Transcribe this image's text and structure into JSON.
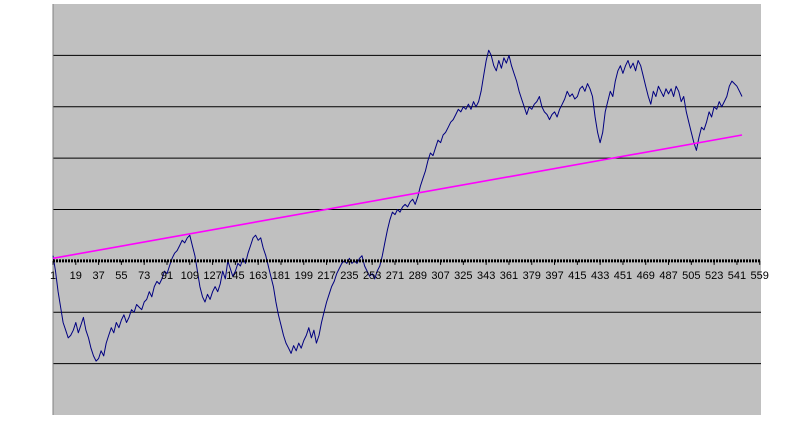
{
  "chart_data": {
    "type": "line",
    "title": "",
    "xlabel": "",
    "ylabel": "",
    "x_tick_labels": [
      "1",
      "19",
      "37",
      "55",
      "73",
      "91",
      "109",
      "127",
      "145",
      "163",
      "181",
      "199",
      "217",
      "235",
      "253",
      "271",
      "289",
      "307",
      "325",
      "343",
      "361",
      "379",
      "397",
      "415",
      "433",
      "451",
      "469",
      "487",
      "505",
      "523",
      "541",
      "559"
    ],
    "xlim": [
      1,
      560
    ],
    "ylim": [
      -3,
      5
    ],
    "grid": true,
    "legend": "none",
    "colors": {
      "plot_background": "#c0c0c0",
      "series_line": "#000080",
      "trend_line": "#ff00ff",
      "gridline": "#000000",
      "zero_axis": "#000000"
    },
    "series": [
      {
        "values_xy": [
          [
            1,
            0.1
          ],
          [
            3,
            -0.2
          ],
          [
            5,
            -0.6
          ],
          [
            7,
            -0.9
          ],
          [
            9,
            -1.2
          ],
          [
            11,
            -1.35
          ],
          [
            13,
            -1.5
          ],
          [
            15,
            -1.45
          ],
          [
            17,
            -1.35
          ],
          [
            19,
            -1.2
          ],
          [
            21,
            -1.4
          ],
          [
            23,
            -1.25
          ],
          [
            25,
            -1.1
          ],
          [
            27,
            -1.35
          ],
          [
            29,
            -1.5
          ],
          [
            31,
            -1.7
          ],
          [
            33,
            -1.85
          ],
          [
            35,
            -1.95
          ],
          [
            37,
            -1.9
          ],
          [
            39,
            -1.75
          ],
          [
            41,
            -1.85
          ],
          [
            43,
            -1.6
          ],
          [
            45,
            -1.45
          ],
          [
            47,
            -1.3
          ],
          [
            49,
            -1.4
          ],
          [
            51,
            -1.2
          ],
          [
            53,
            -1.3
          ],
          [
            55,
            -1.15
          ],
          [
            57,
            -1.05
          ],
          [
            59,
            -1.2
          ],
          [
            61,
            -1.1
          ],
          [
            63,
            -0.95
          ],
          [
            65,
            -1.0
          ],
          [
            67,
            -0.85
          ],
          [
            69,
            -0.9
          ],
          [
            71,
            -0.95
          ],
          [
            73,
            -0.8
          ],
          [
            75,
            -0.75
          ],
          [
            77,
            -0.6
          ],
          [
            79,
            -0.7
          ],
          [
            81,
            -0.5
          ],
          [
            83,
            -0.4
          ],
          [
            85,
            -0.45
          ],
          [
            87,
            -0.35
          ],
          [
            89,
            -0.2
          ],
          [
            91,
            -0.25
          ],
          [
            93,
            -0.1
          ],
          [
            95,
            0.05
          ],
          [
            97,
            0.15
          ],
          [
            99,
            0.2
          ],
          [
            101,
            0.3
          ],
          [
            103,
            0.4
          ],
          [
            105,
            0.35
          ],
          [
            107,
            0.45
          ],
          [
            109,
            0.5
          ],
          [
            111,
            0.3
          ],
          [
            113,
            0.1
          ],
          [
            115,
            -0.2
          ],
          [
            117,
            -0.5
          ],
          [
            119,
            -0.7
          ],
          [
            121,
            -0.8
          ],
          [
            123,
            -0.65
          ],
          [
            125,
            -0.75
          ],
          [
            127,
            -0.6
          ],
          [
            129,
            -0.5
          ],
          [
            131,
            -0.6
          ],
          [
            133,
            -0.45
          ],
          [
            135,
            -0.2
          ],
          [
            137,
            -0.35
          ],
          [
            139,
            0.0
          ],
          [
            141,
            -0.15
          ],
          [
            143,
            -0.3
          ],
          [
            145,
            -0.2
          ],
          [
            147,
            -0.05
          ],
          [
            149,
            -0.1
          ],
          [
            151,
            0.05
          ],
          [
            153,
            -0.05
          ],
          [
            155,
            0.15
          ],
          [
            157,
            0.3
          ],
          [
            159,
            0.45
          ],
          [
            161,
            0.5
          ],
          [
            163,
            0.4
          ],
          [
            165,
            0.45
          ],
          [
            167,
            0.25
          ],
          [
            169,
            0.1
          ],
          [
            171,
            -0.1
          ],
          [
            173,
            -0.3
          ],
          [
            175,
            -0.5
          ],
          [
            177,
            -0.8
          ],
          [
            179,
            -1.05
          ],
          [
            181,
            -1.25
          ],
          [
            183,
            -1.45
          ],
          [
            185,
            -1.6
          ],
          [
            187,
            -1.7
          ],
          [
            189,
            -1.8
          ],
          [
            191,
            -1.65
          ],
          [
            193,
            -1.75
          ],
          [
            195,
            -1.6
          ],
          [
            197,
            -1.7
          ],
          [
            199,
            -1.55
          ],
          [
            201,
            -1.45
          ],
          [
            203,
            -1.3
          ],
          [
            205,
            -1.5
          ],
          [
            207,
            -1.35
          ],
          [
            209,
            -1.6
          ],
          [
            211,
            -1.45
          ],
          [
            213,
            -1.2
          ],
          [
            215,
            -1.0
          ],
          [
            217,
            -0.8
          ],
          [
            219,
            -0.65
          ],
          [
            221,
            -0.5
          ],
          [
            223,
            -0.4
          ],
          [
            225,
            -0.25
          ],
          [
            227,
            -0.15
          ],
          [
            229,
            -0.05
          ],
          [
            231,
            0.0
          ],
          [
            233,
            -0.05
          ],
          [
            235,
            0.05
          ],
          [
            237,
            -0.05
          ],
          [
            239,
            0.0
          ],
          [
            241,
            -0.05
          ],
          [
            243,
            0.05
          ],
          [
            245,
            0.1
          ],
          [
            247,
            -0.1
          ],
          [
            249,
            -0.2
          ],
          [
            251,
            -0.3
          ],
          [
            253,
            -0.25
          ],
          [
            255,
            -0.35
          ],
          [
            257,
            -0.2
          ],
          [
            259,
            -0.1
          ],
          [
            261,
            0.1
          ],
          [
            263,
            0.35
          ],
          [
            265,
            0.6
          ],
          [
            267,
            0.8
          ],
          [
            269,
            0.95
          ],
          [
            271,
            0.9
          ],
          [
            273,
            1.0
          ],
          [
            275,
            0.95
          ],
          [
            277,
            1.05
          ],
          [
            279,
            1.1
          ],
          [
            281,
            1.05
          ],
          [
            283,
            1.15
          ],
          [
            285,
            1.2
          ],
          [
            287,
            1.1
          ],
          [
            289,
            1.25
          ],
          [
            291,
            1.45
          ],
          [
            293,
            1.6
          ],
          [
            295,
            1.75
          ],
          [
            297,
            1.95
          ],
          [
            299,
            2.1
          ],
          [
            301,
            2.05
          ],
          [
            303,
            2.2
          ],
          [
            305,
            2.35
          ],
          [
            307,
            2.3
          ],
          [
            309,
            2.45
          ],
          [
            311,
            2.5
          ],
          [
            313,
            2.6
          ],
          [
            315,
            2.7
          ],
          [
            317,
            2.75
          ],
          [
            319,
            2.85
          ],
          [
            321,
            2.95
          ],
          [
            323,
            2.9
          ],
          [
            325,
            3.0
          ],
          [
            327,
            2.95
          ],
          [
            329,
            3.05
          ],
          [
            331,
            2.95
          ],
          [
            333,
            3.1
          ],
          [
            335,
            3.0
          ],
          [
            337,
            3.1
          ],
          [
            339,
            3.3
          ],
          [
            341,
            3.6
          ],
          [
            343,
            3.9
          ],
          [
            345,
            4.1
          ],
          [
            347,
            4.0
          ],
          [
            349,
            3.8
          ],
          [
            351,
            3.7
          ],
          [
            353,
            3.9
          ],
          [
            355,
            3.75
          ],
          [
            357,
            3.95
          ],
          [
            359,
            3.85
          ],
          [
            361,
            4.0
          ],
          [
            363,
            3.8
          ],
          [
            365,
            3.65
          ],
          [
            367,
            3.5
          ],
          [
            369,
            3.3
          ],
          [
            371,
            3.15
          ],
          [
            373,
            3.0
          ],
          [
            375,
            2.85
          ],
          [
            377,
            3.0
          ],
          [
            379,
            2.95
          ],
          [
            381,
            3.05
          ],
          [
            383,
            3.1
          ],
          [
            385,
            3.2
          ],
          [
            387,
            3.0
          ],
          [
            389,
            2.9
          ],
          [
            391,
            2.85
          ],
          [
            393,
            2.75
          ],
          [
            395,
            2.85
          ],
          [
            397,
            2.9
          ],
          [
            399,
            2.8
          ],
          [
            401,
            2.95
          ],
          [
            403,
            3.05
          ],
          [
            405,
            3.15
          ],
          [
            407,
            3.3
          ],
          [
            409,
            3.2
          ],
          [
            411,
            3.25
          ],
          [
            413,
            3.15
          ],
          [
            415,
            3.2
          ],
          [
            417,
            3.35
          ],
          [
            419,
            3.4
          ],
          [
            421,
            3.3
          ],
          [
            423,
            3.45
          ],
          [
            425,
            3.35
          ],
          [
            427,
            3.2
          ],
          [
            429,
            2.8
          ],
          [
            431,
            2.5
          ],
          [
            433,
            2.3
          ],
          [
            435,
            2.5
          ],
          [
            437,
            2.9
          ],
          [
            439,
            3.1
          ],
          [
            441,
            3.3
          ],
          [
            443,
            3.2
          ],
          [
            445,
            3.5
          ],
          [
            447,
            3.7
          ],
          [
            449,
            3.8
          ],
          [
            451,
            3.65
          ],
          [
            453,
            3.8
          ],
          [
            455,
            3.9
          ],
          [
            457,
            3.75
          ],
          [
            459,
            3.85
          ],
          [
            461,
            3.7
          ],
          [
            463,
            3.9
          ],
          [
            465,
            3.8
          ],
          [
            467,
            3.6
          ],
          [
            469,
            3.4
          ],
          [
            471,
            3.2
          ],
          [
            473,
            3.05
          ],
          [
            475,
            3.3
          ],
          [
            477,
            3.2
          ],
          [
            479,
            3.4
          ],
          [
            481,
            3.3
          ],
          [
            483,
            3.2
          ],
          [
            485,
            3.35
          ],
          [
            487,
            3.25
          ],
          [
            489,
            3.35
          ],
          [
            491,
            3.2
          ],
          [
            493,
            3.4
          ],
          [
            495,
            3.3
          ],
          [
            497,
            3.1
          ],
          [
            499,
            3.2
          ],
          [
            501,
            2.9
          ],
          [
            503,
            2.7
          ],
          [
            505,
            2.5
          ],
          [
            507,
            2.3
          ],
          [
            509,
            2.15
          ],
          [
            511,
            2.4
          ],
          [
            513,
            2.6
          ],
          [
            515,
            2.55
          ],
          [
            517,
            2.7
          ],
          [
            519,
            2.9
          ],
          [
            521,
            2.8
          ],
          [
            523,
            3.0
          ],
          [
            525,
            2.95
          ],
          [
            527,
            3.1
          ],
          [
            529,
            3.0
          ],
          [
            531,
            3.1
          ],
          [
            533,
            3.2
          ],
          [
            535,
            3.4
          ],
          [
            537,
            3.5
          ],
          [
            539,
            3.45
          ],
          [
            541,
            3.4
          ],
          [
            543,
            3.3
          ],
          [
            545,
            3.2
          ]
        ]
      },
      {
        "values_xy": [
          [
            1,
            0.05
          ],
          [
            545,
            2.45
          ]
        ]
      }
    ]
  }
}
